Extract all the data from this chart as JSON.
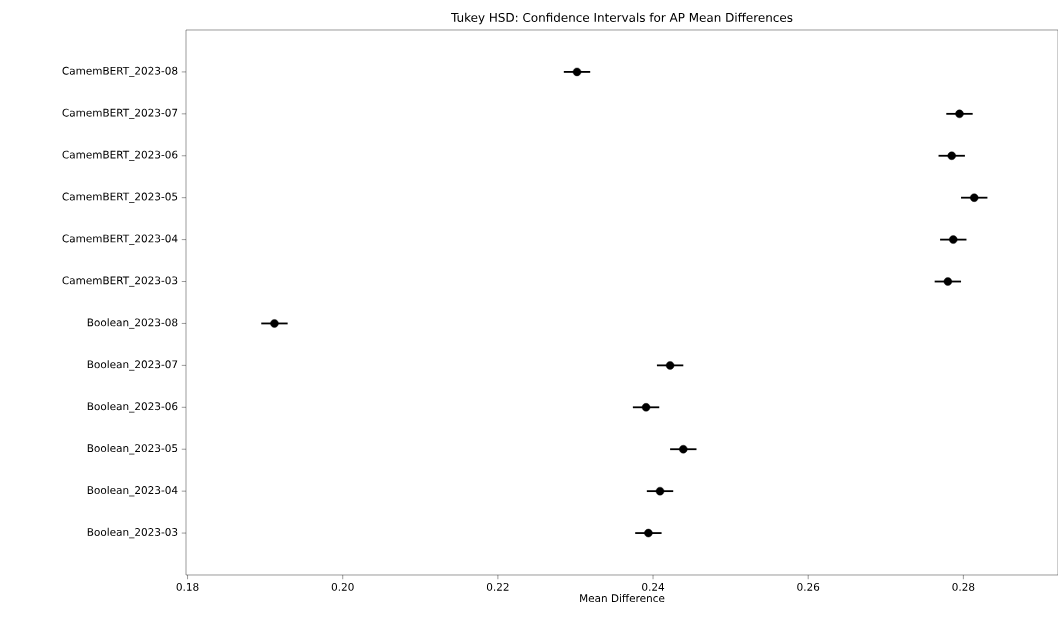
{
  "chart_data": {
    "type": "scatter",
    "orientation": "horizontal",
    "title": "Tukey HSD: Confidence Intervals for AP Mean Differences",
    "xlabel": "Mean Difference",
    "categories": [
      "CamemBERT_2023-08",
      "CamemBERT_2023-07",
      "CamemBERT_2023-06",
      "CamemBERT_2023-05",
      "CamemBERT_2023-04",
      "CamemBERT_2023-03",
      "Boolean_2023-08",
      "Boolean_2023-07",
      "Boolean_2023-06",
      "Boolean_2023-05",
      "Boolean_2023-04",
      "Boolean_2023-03"
    ],
    "values": [
      0.2302,
      0.2795,
      0.2785,
      0.2814,
      0.2787,
      0.278,
      0.1912,
      0.2422,
      0.2391,
      0.2439,
      0.2409,
      0.2394
    ],
    "errors": [
      0.0017,
      0.0017,
      0.0017,
      0.0017,
      0.0017,
      0.0017,
      0.0017,
      0.0017,
      0.0017,
      0.0017,
      0.0017,
      0.0017
    ],
    "color": "#000000",
    "marker": "circle",
    "xlim": [
      0.1798,
      0.2922
    ],
    "xticks": [
      0.18,
      {
        "value": 0.2,
        "label": "0.20"
      },
      0.22,
      0.24,
      0.26,
      0.28
    ]
  }
}
